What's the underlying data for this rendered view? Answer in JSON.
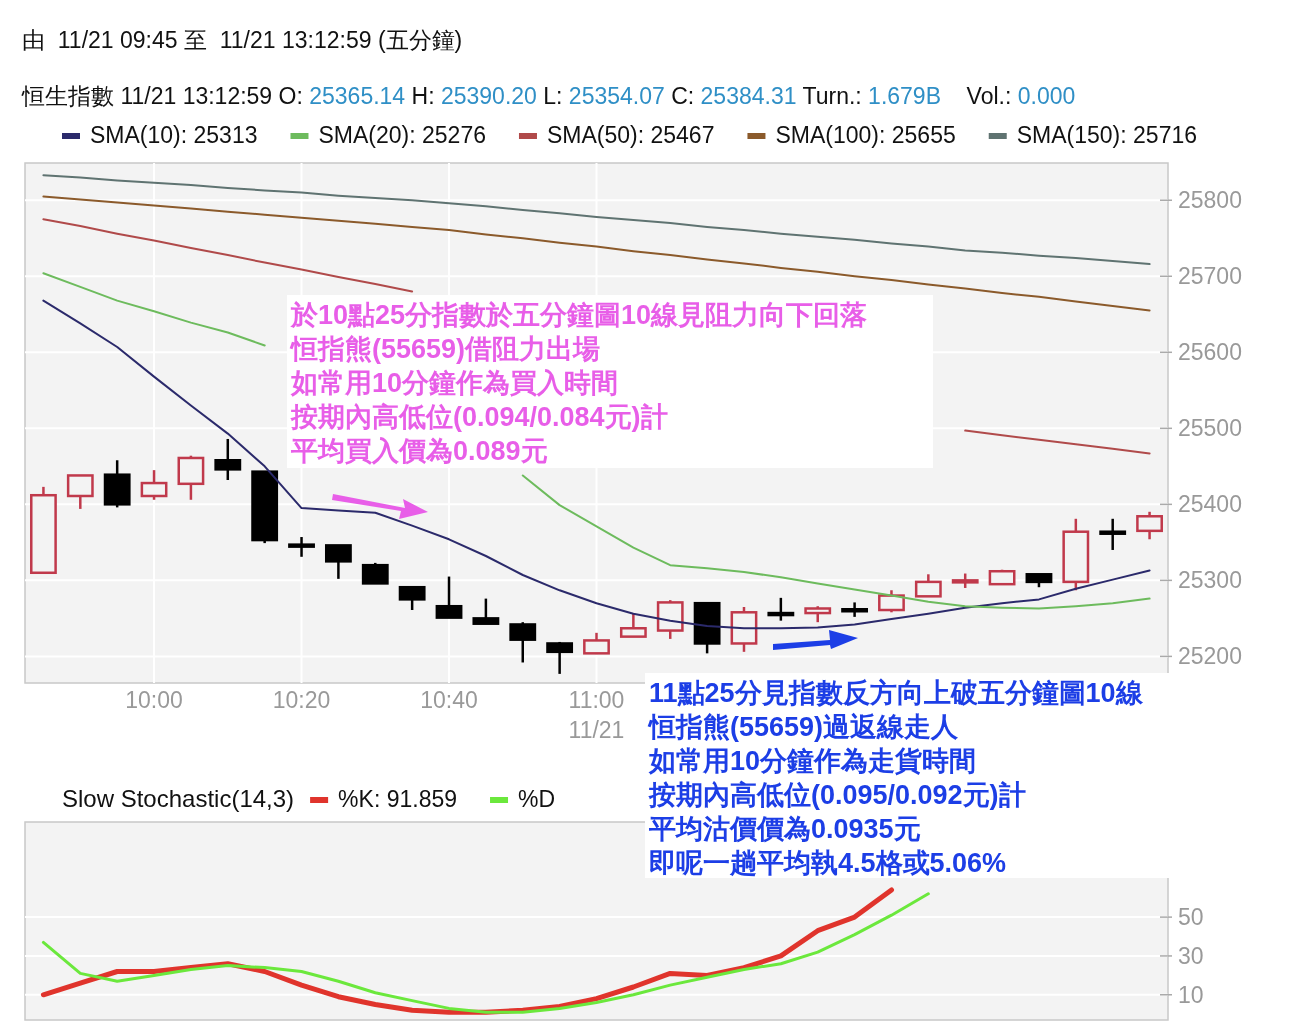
{
  "chart_data": [
    {
      "type": "candlestick",
      "title": "由  11/21 09:45 至  11/21 13:12:59 (五分鐘)",
      "subtitle": "恒生指數 11/21 13:12:59 O: 25365.14 H: 25390.20 L: 25354.07 C: 25384.31 Turn.: 1.679B    Vol.: 0.000",
      "categories": [
        null,
        null,
        null,
        "10:00",
        null,
        null,
        null,
        "10:20",
        null,
        null,
        null,
        "10:40",
        null,
        null,
        null,
        "11:00",
        null,
        null,
        null,
        null,
        null,
        null,
        null,
        null,
        null,
        null,
        null,
        null,
        null,
        null,
        null
      ],
      "ohlc": [
        [
          25310,
          25423,
          25310,
          25412
        ],
        [
          25411,
          25438,
          25394,
          25438
        ],
        [
          25439,
          25458,
          25396,
          25400
        ],
        [
          25411,
          25445,
          25406,
          25428
        ],
        [
          25427,
          25464,
          25406,
          25461
        ],
        [
          25458,
          25486,
          25432,
          25446
        ],
        [
          25443,
          25443,
          25349,
          25353
        ],
        [
          25347,
          25357,
          25331,
          25347
        ],
        [
          25346,
          25346,
          25302,
          25325
        ],
        [
          25320,
          25323,
          25296,
          25296
        ],
        [
          25291,
          25291,
          25261,
          25275
        ],
        [
          25266,
          25305,
          25251,
          25251
        ],
        [
          25250,
          25276,
          25243,
          25243
        ],
        [
          25242,
          25245,
          25192,
          25222
        ],
        [
          25217,
          25219,
          25177,
          25206
        ],
        [
          25204,
          25231,
          25203,
          25221
        ],
        [
          25226,
          25257,
          25226,
          25237
        ],
        [
          25234,
          25274,
          25223,
          25271
        ],
        [
          25270,
          25270,
          25204,
          25217
        ],
        [
          25217,
          25265,
          25206,
          25258
        ],
        [
          25257,
          25277,
          25247,
          25257
        ],
        [
          25257,
          25266,
          25245,
          25263
        ],
        [
          25262,
          25271,
          25252,
          25262
        ],
        [
          25261,
          25287,
          25258,
          25280
        ],
        [
          25279,
          25308,
          25279,
          25298
        ],
        [
          25298,
          25309,
          25290,
          25300
        ],
        [
          25295,
          25314,
          25295,
          25312
        ],
        [
          25308,
          25308,
          25291,
          25298
        ],
        [
          25298,
          25381,
          25287,
          25364
        ],
        [
          25364,
          25381,
          25340,
          25364
        ],
        [
          25365.14,
          25390.2,
          25354.07,
          25384.31
        ]
      ],
      "series": [
        {
          "name": "SMA(10): 25313",
          "type": "line",
          "color": "#2b2a6b",
          "values": [
            25668,
            25638,
            25607,
            25568,
            25530,
            25493,
            25450,
            25395,
            25392,
            25389,
            25372,
            25354,
            25332,
            25307,
            25287,
            25270,
            25256,
            25247,
            25240,
            25237,
            25237,
            25238,
            25242,
            25249,
            25256,
            25264,
            25270,
            25275,
            25289,
            25301,
            25313
          ]
        },
        {
          "name": "SMA(20): 25276",
          "type": "line",
          "color": "#6dbb5d",
          "values": [
            25704,
            25686,
            25668,
            25654,
            25639,
            25626,
            25609,
            null,
            null,
            null,
            null,
            null,
            null,
            25438,
            25399,
            25371,
            25343,
            25320,
            25316,
            25311,
            25304,
            25296,
            25288,
            25280,
            25272,
            25266,
            25264,
            25263,
            25266,
            25270,
            25276
          ]
        },
        {
          "name": "SMA(50): 25467",
          "type": "line",
          "color": "#b04a4a",
          "values": [
            25775,
            25766,
            25756,
            25747,
            25737,
            25728,
            25718,
            25709,
            25699,
            25690,
            25680,
            null,
            null,
            null,
            null,
            null,
            null,
            null,
            null,
            null,
            null,
            null,
            null,
            null,
            null,
            25497,
            25491,
            25485,
            25479,
            25473,
            25467
          ]
        },
        {
          "name": "SMA(100): 25655",
          "type": "line",
          "color": "#8b5a2b",
          "values": [
            25805,
            25801,
            25797,
            25793,
            25789,
            25785,
            25781,
            25777,
            25773,
            25769,
            25765,
            25761,
            25755,
            25750,
            25744,
            25739,
            25733,
            25728,
            25722,
            25717,
            25711,
            25706,
            25700,
            25695,
            25689,
            25684,
            25678,
            25673,
            25667,
            25661,
            25655
          ]
        },
        {
          "name": "SMA(150): 25716",
          "type": "line",
          "color": "#5f7371",
          "values": [
            25833,
            25830,
            25826,
            25823,
            25820,
            25816,
            25813,
            25810,
            25806,
            25803,
            25800,
            25796,
            25792,
            25787,
            25783,
            25778,
            25774,
            25770,
            25765,
            25761,
            25756,
            25752,
            25748,
            25743,
            25739,
            25734,
            25731,
            25727,
            25724,
            25720,
            25716
          ]
        }
      ],
      "ylim": [
        25165,
        25849
      ],
      "yticks": [
        25200,
        25300,
        25400,
        25500,
        25600,
        25700,
        25800
      ],
      "grid": true,
      "legend": "top",
      "annotations": [
        "於10點25分指數於五分鐘圖10線見阻力向下回落",
        "恒指熊(55659)借阻力出場",
        "如常用10分鐘作為買入時間",
        "按期內高低位(0.094/0.084元)計",
        "平均買入價為0.089元",
        "11點25分見指數反方向上破五分鐘圖10線",
        "恒指熊(55659)過返線走人",
        "如常用10分鐘作為走貨時間",
        "按期內高低位(0.095/0.092元)計",
        "平均沽價價為0.0935元",
        "即呢一趟平均執4.5格或5.06%",
        "11/21"
      ]
    },
    {
      "type": "line",
      "title": "Slow Stochastic(14,3)",
      "categories": [
        null,
        null,
        null,
        null,
        null,
        null,
        null,
        null,
        null,
        null,
        null,
        null,
        null,
        null,
        null,
        null,
        null,
        null,
        null,
        null,
        null,
        null,
        null,
        null,
        null,
        null,
        null,
        null,
        null,
        null,
        null
      ],
      "series": [
        {
          "name": "%K: 91.859",
          "color": "#e0342c",
          "values": [
            10,
            16,
            22,
            22,
            24,
            26,
            22,
            15,
            9,
            5,
            2,
            1,
            1,
            2,
            4,
            8,
            14,
            21,
            20,
            24,
            30,
            43,
            50,
            64,
            null,
            null,
            null,
            null,
            null,
            null,
            null
          ]
        },
        {
          "name": "%D",
          "color": "#6be83c",
          "values": [
            37,
            21,
            17,
            20,
            23,
            25,
            24,
            22,
            17,
            11,
            7,
            3,
            1,
            1,
            3,
            6,
            10,
            15,
            19,
            23,
            26,
            32,
            41,
            51,
            62,
            null,
            null,
            null,
            null,
            null,
            null
          ]
        }
      ],
      "ylim": [
        -3,
        99
      ],
      "yticks": [
        10,
        30,
        50
      ],
      "grid": true,
      "legend": "top",
      "tick_labels": "y"
    }
  ]
}
